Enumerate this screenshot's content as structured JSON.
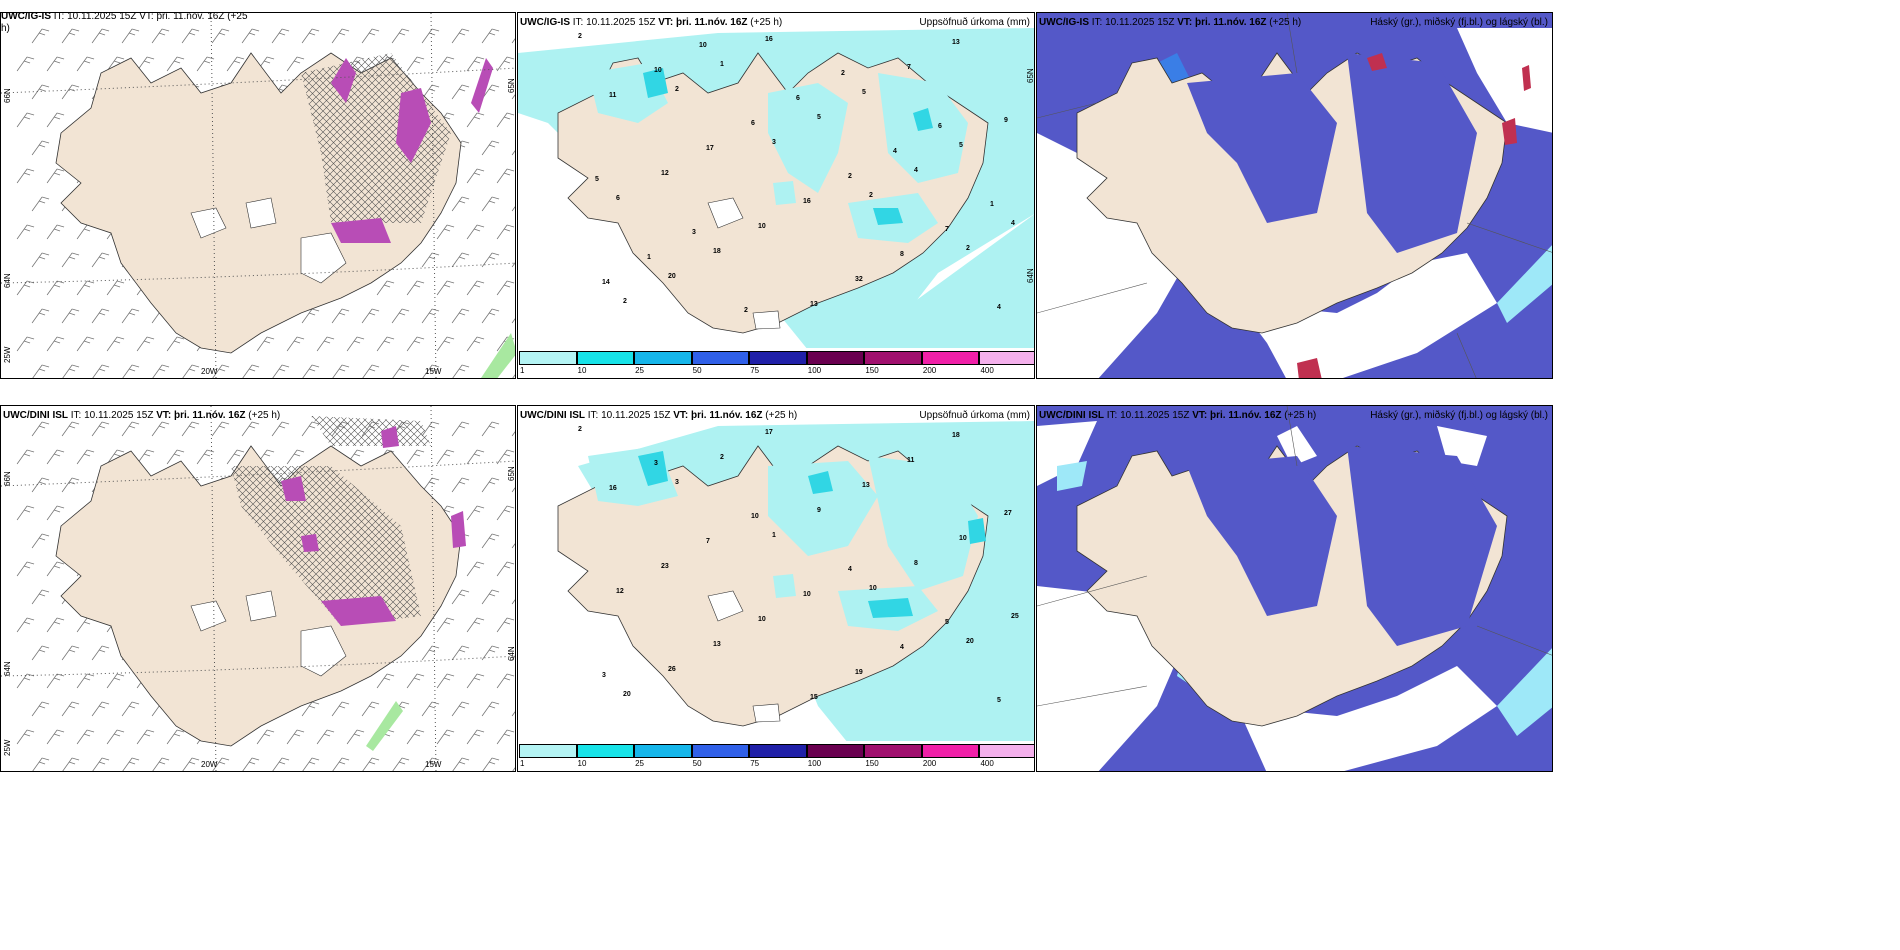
{
  "panels": [
    {
      "id": "wind-ig",
      "title_bold": "UWC/IG-IS",
      "title_rest": "IT: 10.11.2025 15Z VT: þri. 11.nóv. 16Z (+25",
      "title_line2": "h)",
      "right": "",
      "lon_labels": [
        "20W",
        "15W"
      ],
      "lat_labels": [
        "66N",
        "64N",
        "25W"
      ],
      "right_lat_labels": [
        "65N"
      ]
    },
    {
      "id": "precip-ig",
      "title_bold": "UWC/IG-IS",
      "title_rest": "IT: 10.11.2025 15Z",
      "vt_bold": "VT: þri. 11.nóv. 16Z",
      "vt_rest": "(+25 h)",
      "right": "Uppsöfnuð úrkoma (mm)",
      "lon_labels": [],
      "lat_labels": [],
      "right_lat_labels": [
        "65N",
        "64N"
      ]
    },
    {
      "id": "cloud-ig",
      "title_bold": "UWC/IG-IS",
      "title_rest": "IT: 10.11.2025 15Z",
      "vt_bold": "VT: þri. 11.nóv. 16Z",
      "vt_rest": "(+25 h)",
      "right": "Háský (gr.), miðský (fj.bl.) og lágský (bl.)",
      "lon_labels": [],
      "lat_labels": [],
      "right_lat_labels": []
    },
    {
      "id": "wind-dini",
      "title_bold": "UWC/DINI ISL",
      "title_rest": "IT: 10.11.2025 15Z",
      "vt_bold": "VT: þri. 11.nóv. 16Z",
      "vt_rest": "(+25 h)",
      "right": "",
      "lon_labels": [
        "20W",
        "15W"
      ],
      "lat_labels": [
        "66N",
        "64N",
        "25W"
      ],
      "right_lat_labels": [
        "65N",
        "64N"
      ]
    },
    {
      "id": "precip-dini",
      "title_bold": "UWC/DINI ISL",
      "title_rest": "IT: 10.11.2025 15Z",
      "vt_bold": "VT: þri. 11.nóv. 16Z",
      "vt_rest": "(+25 h)",
      "right": "Uppsöfnuð úrkoma (mm)",
      "lon_labels": [],
      "lat_labels": [],
      "right_lat_labels": []
    },
    {
      "id": "cloud-dini",
      "title_bold": "UWC/DINI ISL",
      "title_rest": "IT: 10.11.2025 15Z",
      "vt_bold": "VT: þri. 11.nóv. 16Z",
      "vt_rest": "(+25 h)",
      "right": "Háský (gr.), miðský (fj.bl.) og lágský (bl.)",
      "lon_labels": [],
      "lat_labels": [],
      "right_lat_labels": []
    }
  ],
  "colorbar": {
    "ticks": [
      "1",
      "10",
      "25",
      "50",
      "75",
      "100",
      "150",
      "200",
      "400"
    ],
    "colors": [
      "#b4f4f4",
      "#17e3e8",
      "#16b6ea",
      "#3060e8",
      "#2020a8",
      "#6a0050",
      "#a0106e",
      "#f020a8",
      "#f4b0ec"
    ]
  },
  "colors": {
    "land": "#f2e4d4",
    "precip_light": "#aef2f2",
    "precip_mid": "#31d6e4",
    "high_cloud": "#5458c8",
    "mid_cloud": "#3a7ee6",
    "low_cloud": "#9ee8f8",
    "heavy": "#c03050",
    "snow": "#b84db6"
  },
  "precip_labels_top": [
    "2",
    "2",
    "3",
    "2",
    "2",
    "2",
    "1",
    "5",
    "4",
    "4",
    "20",
    "16",
    "5",
    "5",
    "6",
    "18",
    "13",
    "7",
    "9",
    "12",
    "10",
    "32",
    "13",
    "11",
    "17",
    "16",
    "8",
    "4",
    "10",
    "6",
    "2",
    "7",
    "14",
    "10",
    "6",
    "4",
    "1",
    "1",
    "2",
    "2",
    "6",
    "5",
    "3"
  ],
  "precip_labels_bottom": [
    "2",
    "3",
    "1",
    "10",
    "20",
    "20",
    "2",
    "9",
    "8",
    "25",
    "26",
    "17",
    "13",
    "10",
    "12",
    "13",
    "15",
    "11",
    "27",
    "23",
    "10",
    "19",
    "18",
    "16",
    "7",
    "10",
    "4",
    "5",
    "3",
    "10",
    "4",
    "5",
    "3"
  ]
}
